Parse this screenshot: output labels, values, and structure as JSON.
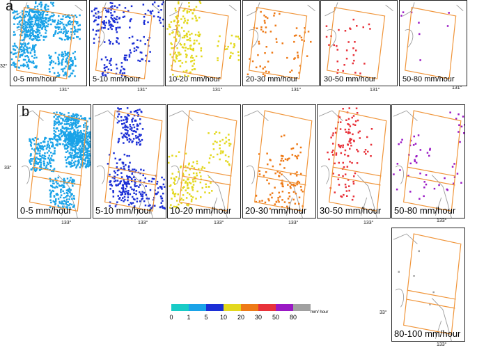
{
  "row_a": {
    "label": "a",
    "panels": [
      {
        "caption": "0-5 mm/hour",
        "color": "#1aa3e8",
        "density": 0.3
      },
      {
        "caption": "5-10 mm/hour",
        "color": "#1c2fd6",
        "density": 0.1
      },
      {
        "caption": "10-20 mm/hour",
        "color": "#e3d81e",
        "density": 0.09
      },
      {
        "caption": "20-30 mm/hour",
        "color": "#ee7a17",
        "density": 0.03
      },
      {
        "caption": "30-50 mm/hour",
        "color": "#e8323a",
        "density": 0.015
      },
      {
        "caption": "50-80 mm/hour",
        "color": "#9a19c4",
        "density": 0.004
      }
    ],
    "lon_label": "131°",
    "lat_label": "32°"
  },
  "row_b": {
    "label": "b",
    "panels": [
      {
        "caption": "0-5 mm/hour",
        "color": "#1aa3e8",
        "density": 0.35
      },
      {
        "caption": "5-10 mm/hour",
        "color": "#1c2fd6",
        "density": 0.12
      },
      {
        "caption": "10-20 mm/hour",
        "color": "#e3d81e",
        "density": 0.06
      },
      {
        "caption": "20-30 mm/hour",
        "color": "#ee7a17",
        "density": 0.04
      },
      {
        "caption": "30-50 mm/hour",
        "color": "#e8323a",
        "density": 0.04
      },
      {
        "caption": "50-80 mm/hour",
        "color": "#9a19c4",
        "density": 0.02
      },
      {
        "caption": "80-100 mm/hour",
        "color": "#a0a0a0",
        "density": 0.002
      }
    ],
    "lon_label": "133°",
    "lat_label": "33°"
  },
  "legend": {
    "colors": [
      "#19cbc6",
      "#1aa3e8",
      "#1c2fd6",
      "#e3d81e",
      "#ee7a17",
      "#e8323a",
      "#9a19c4",
      "#a0a0a0"
    ],
    "ticks": [
      "0",
      "1",
      "5",
      "10",
      "20",
      "30",
      "50",
      "80"
    ],
    "unit": "mm/ hour"
  }
}
